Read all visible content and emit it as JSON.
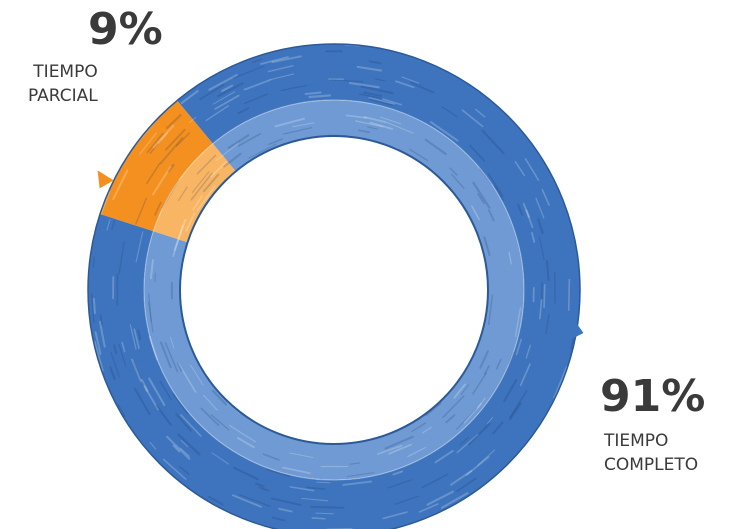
{
  "chart_data": {
    "type": "pie",
    "variant": "donut",
    "title": "",
    "slices": [
      {
        "pct_label": "9%",
        "label_lines": [
          "TIEMPO",
          "PARCIAL"
        ],
        "value": 9,
        "color": "#f3901f",
        "inner_color": "#f8b665"
      },
      {
        "pct_label": "91%",
        "label_lines": [
          "TIEMPO",
          "COMPLETO"
        ],
        "value": 91,
        "color": "#3d74bd",
        "inner_color": "#6f9ad3"
      }
    ]
  }
}
